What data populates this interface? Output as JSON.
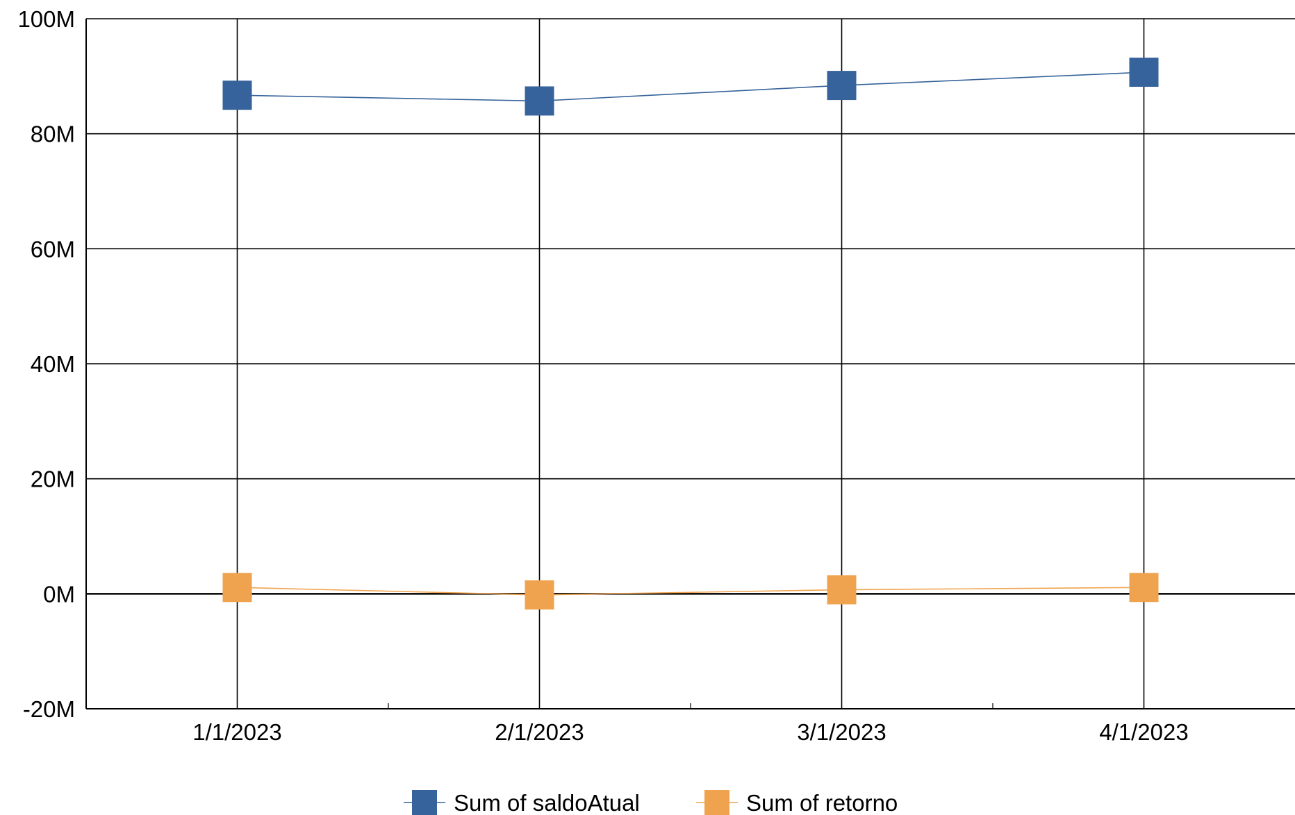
{
  "chart_data": {
    "type": "line",
    "title": "",
    "xlabel": "",
    "ylabel": "",
    "categories": [
      "1/1/2023",
      "2/1/2023",
      "3/1/2023",
      "4/1/2023"
    ],
    "ylim": [
      -20000000,
      100000000
    ],
    "yticks": [
      {
        "value": -20000000,
        "label": "-20M"
      },
      {
        "value": 0,
        "label": "0M"
      },
      {
        "value": 20000000,
        "label": "20M"
      },
      {
        "value": 40000000,
        "label": "40M"
      },
      {
        "value": 60000000,
        "label": "60M"
      },
      {
        "value": 80000000,
        "label": "80M"
      },
      {
        "value": 100000000,
        "label": "100M"
      }
    ],
    "grid": true,
    "legend_position": "bottom",
    "series": [
      {
        "name": "Sum of saldoAtual",
        "color": "#36639B",
        "marker": "square",
        "values": [
          86700000,
          85700000,
          88400000,
          90700000
        ]
      },
      {
        "name": "Sum of retorno",
        "color": "#F0A34F",
        "marker": "square",
        "values": [
          1100000,
          -200000,
          700000,
          1100000
        ]
      }
    ]
  }
}
